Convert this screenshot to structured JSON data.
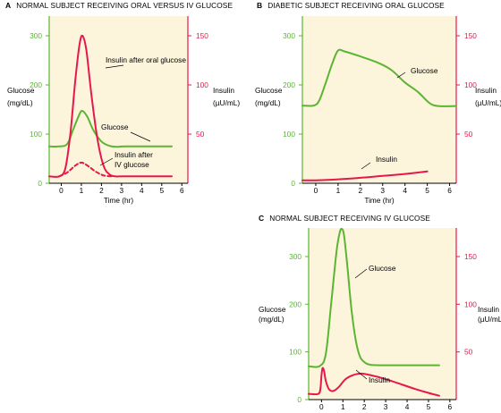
{
  "colors": {
    "glucose": "#5ab631",
    "insulin": "#e8174a",
    "plot_bg": "#fdf4dc",
    "text": "#000000"
  },
  "chart_data": [
    {
      "id": "A",
      "type": "line",
      "letter": "A",
      "title": "NORMAL SUBJECT RECEIVING ORAL VERSUS IV GLUCOSE",
      "xlabel": "Time (hr)",
      "ylabel_left": [
        "Glucose",
        "(mg/dL)"
      ],
      "ylabel_right": [
        "Insulin",
        "(µU/mL)"
      ],
      "xlim": [
        -0.6,
        6.3
      ],
      "ylim_left": [
        0,
        340
      ],
      "ylim_right": [
        0,
        170
      ],
      "xticks": [
        0,
        1,
        2,
        3,
        4,
        5,
        6
      ],
      "yticks_left": [
        0,
        100,
        200,
        300
      ],
      "yticks_right": [
        50,
        100,
        150
      ],
      "series": [
        {
          "name": "Glucose",
          "axis": "left",
          "color": "glucose",
          "style": "solid",
          "x": [
            -0.6,
            -0.1,
            0.3,
            0.6,
            0.9,
            1.05,
            1.3,
            1.6,
            2.0,
            2.4,
            2.8,
            3.2,
            5.5
          ],
          "y": [
            75,
            75,
            80,
            110,
            140,
            147,
            135,
            108,
            85,
            76,
            74,
            75,
            75
          ]
        },
        {
          "name": "Insulin after oral glucose",
          "axis": "right",
          "color": "insulin",
          "style": "solid",
          "x": [
            -0.6,
            -0.1,
            0.2,
            0.45,
            0.7,
            0.9,
            1.05,
            1.25,
            1.5,
            1.8,
            2.1,
            2.4,
            2.7,
            3.1,
            5.5
          ],
          "y": [
            7,
            7,
            15,
            50,
            105,
            140,
            150,
            135,
            90,
            45,
            18,
            9,
            7,
            7,
            7
          ]
        },
        {
          "name": "Insulin after IV glucose",
          "axis": "right",
          "color": "insulin",
          "style": "dashed",
          "x": [
            -0.1,
            0.3,
            0.7,
            1.0,
            1.3,
            1.7,
            2.1,
            2.5
          ],
          "y": [
            7,
            11,
            18,
            21,
            18,
            12,
            8,
            7
          ]
        }
      ],
      "annotations": [
        {
          "label": "Insulin after oral glucose"
        },
        {
          "label": "Glucose"
        },
        {
          "label": "Insulin after"
        },
        {
          "label": "IV glucose"
        }
      ]
    },
    {
      "id": "B",
      "type": "line",
      "letter": "B",
      "title": "DIABETIC SUBJECT RECEIVING ORAL GLUCOSE",
      "xlabel": "Time (hr)",
      "ylabel_left": [
        "Glucose",
        "(mg/dL)"
      ],
      "ylabel_right": [
        "Insulin",
        "(µU/mL)"
      ],
      "xlim": [
        -0.6,
        6.3
      ],
      "ylim_left": [
        0,
        340
      ],
      "ylim_right": [
        0,
        170
      ],
      "xticks": [
        0,
        1,
        2,
        3,
        4,
        5,
        6
      ],
      "yticks_left": [
        0,
        100,
        200,
        300
      ],
      "yticks_right": [
        50,
        100,
        150
      ],
      "series": [
        {
          "name": "Glucose",
          "axis": "left",
          "color": "glucose",
          "style": "solid",
          "x": [
            -0.6,
            -0.1,
            0.15,
            0.45,
            0.75,
            1.0,
            1.3,
            2.0,
            2.8,
            3.4,
            4.0,
            4.6,
            5.1,
            5.5,
            6.3
          ],
          "y": [
            158,
            158,
            168,
            205,
            245,
            270,
            268,
            258,
            245,
            230,
            205,
            185,
            163,
            157,
            157
          ]
        },
        {
          "name": "Insulin",
          "axis": "right",
          "color": "insulin",
          "style": "solid",
          "x": [
            -0.6,
            0.0,
            1.0,
            2.0,
            3.0,
            4.0,
            5.0
          ],
          "y": [
            3,
            3,
            4,
            5.5,
            7.5,
            9.5,
            12
          ]
        }
      ],
      "annotations": [
        {
          "label": "Glucose"
        },
        {
          "label": "Insulin"
        }
      ]
    },
    {
      "id": "C",
      "type": "line",
      "letter": "C",
      "title": "NORMAL SUBJECT RECEIVING IV GLUCOSE",
      "xlabel": "Time (hr)",
      "ylabel_left": [
        "Glucose",
        "(mg/dL)"
      ],
      "ylabel_right": [
        "Insulin",
        "(µU/mL)"
      ],
      "xlim": [
        -0.6,
        6.3
      ],
      "ylim_left": [
        0,
        360
      ],
      "ylim_right": [
        0,
        180
      ],
      "xticks": [
        0,
        1,
        2,
        3,
        4,
        5,
        6
      ],
      "yticks_left": [
        0,
        100,
        200,
        300
      ],
      "yticks_right": [
        50,
        100,
        150
      ],
      "series": [
        {
          "name": "Glucose",
          "axis": "left",
          "color": "glucose",
          "style": "solid",
          "x": [
            -0.6,
            -0.1,
            0.2,
            0.45,
            0.7,
            0.85,
            0.95,
            1.05,
            1.2,
            1.4,
            1.6,
            1.8,
            2.05,
            2.3,
            2.7,
            3.2,
            5.5
          ],
          "y": [
            70,
            70,
            95,
            200,
            310,
            350,
            358,
            345,
            285,
            190,
            125,
            90,
            77,
            73,
            72,
            72,
            72
          ]
        },
        {
          "name": "Insulin",
          "axis": "right",
          "color": "insulin",
          "style": "solid",
          "x": [
            -0.6,
            -0.15,
            -0.05,
            0.0,
            0.05,
            0.12,
            0.2,
            0.35,
            0.55,
            0.8,
            1.1,
            1.4,
            1.7,
            2.0,
            2.6,
            3.2,
            3.8,
            4.4,
            5.0,
            5.5
          ],
          "y": [
            6,
            6,
            12,
            25,
            33,
            30,
            20,
            11,
            9,
            13,
            21,
            25,
            27,
            27,
            24,
            20,
            15.5,
            11,
            7,
            4
          ]
        }
      ],
      "annotations": [
        {
          "label": "Glucose"
        },
        {
          "label": "Insulin"
        }
      ]
    }
  ]
}
